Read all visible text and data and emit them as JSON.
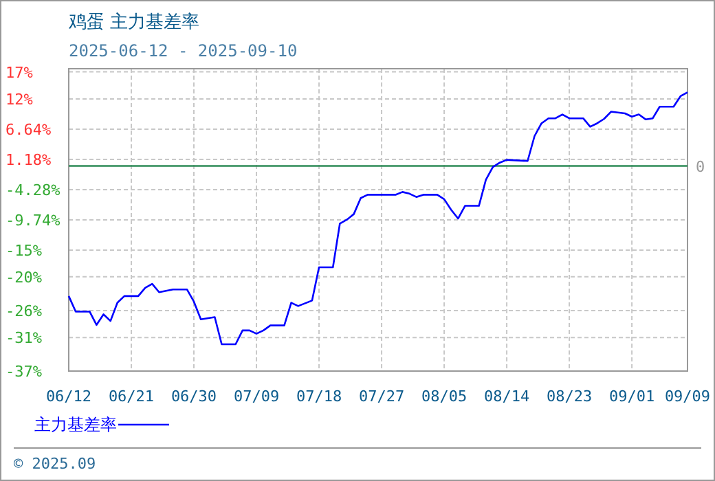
{
  "chart_data": {
    "type": "line",
    "title": "鸡蛋 主力基差率",
    "subtitle": "2025-06-12 - 2025-09-10",
    "series": [
      {
        "name": "主力基差率",
        "color": "#0000ff",
        "x": [
          "2025-06-12",
          "2025-06-13",
          "2025-06-15",
          "2025-06-16",
          "2025-06-17",
          "2025-06-18",
          "2025-06-19",
          "2025-06-20",
          "2025-06-22",
          "2025-06-23",
          "2025-06-24",
          "2025-06-25",
          "2025-06-27",
          "2025-06-29",
          "2025-06-30",
          "2025-07-01",
          "2025-07-03",
          "2025-07-04",
          "2025-07-06",
          "2025-07-07",
          "2025-07-08",
          "2025-07-09",
          "2025-07-10",
          "2025-07-11",
          "2025-07-13",
          "2025-07-14",
          "2025-07-15",
          "2025-07-17",
          "2025-07-18",
          "2025-07-20",
          "2025-07-21",
          "2025-07-22",
          "2025-07-23",
          "2025-07-24",
          "2025-07-25",
          "2025-07-29",
          "2025-07-30",
          "2025-07-31",
          "2025-08-01",
          "2025-08-02",
          "2025-08-04",
          "2025-08-05",
          "2025-08-06",
          "2025-08-07",
          "2025-08-08",
          "2025-08-10",
          "2025-08-11",
          "2025-08-12",
          "2025-08-13",
          "2025-08-14",
          "2025-08-17",
          "2025-08-18",
          "2025-08-19",
          "2025-08-20",
          "2025-08-21",
          "2025-08-22",
          "2025-08-23",
          "2025-08-25",
          "2025-08-26",
          "2025-08-27",
          "2025-08-28",
          "2025-08-29",
          "2025-08-31",
          "2025-09-01",
          "2025-09-02",
          "2025-09-03",
          "2025-09-04",
          "2025-09-05",
          "2025-09-07",
          "2025-09-08",
          "2025-09-09"
        ],
        "values": [
          -23.5,
          -26.3,
          -26.3,
          -28.7,
          -26.8,
          -28.0,
          -24.7,
          -23.5,
          -23.5,
          -22.0,
          -21.3,
          -22.8,
          -22.3,
          -22.3,
          -24.5,
          -27.7,
          -27.3,
          -32.2,
          -32.2,
          -29.7,
          -29.7,
          -30.3,
          -29.7,
          -28.8,
          -28.8,
          -24.7,
          -25.3,
          -24.3,
          -18.3,
          -18.3,
          -10.4,
          -9.7,
          -8.7,
          -5.8,
          -5.2,
          -5.2,
          -4.7,
          -5.0,
          -5.6,
          -5.2,
          -5.2,
          -6.0,
          -7.9,
          -9.5,
          -7.2,
          -7.2,
          -2.5,
          -0.2,
          0.6,
          1.1,
          0.9,
          5.4,
          7.7,
          8.6,
          8.6,
          9.3,
          8.6,
          8.6,
          7.1,
          7.7,
          8.5,
          9.8,
          9.5,
          8.9,
          9.3,
          8.4,
          8.6,
          10.7,
          10.7,
          12.6,
          13.3
        ]
      }
    ],
    "xlim": [
      "2025-06-12",
      "2025-09-09"
    ],
    "xticks": [
      {
        "value": "2025-06-12",
        "label": "06/12"
      },
      {
        "value": "2025-06-21",
        "label": "06/21"
      },
      {
        "value": "2025-06-30",
        "label": "06/30"
      },
      {
        "value": "2025-07-09",
        "label": "07/09"
      },
      {
        "value": "2025-07-18",
        "label": "07/18"
      },
      {
        "value": "2025-07-27",
        "label": "07/27"
      },
      {
        "value": "2025-08-05",
        "label": "08/05"
      },
      {
        "value": "2025-08-14",
        "label": "08/14"
      },
      {
        "value": "2025-08-23",
        "label": "08/23"
      },
      {
        "value": "2025-09-01",
        "label": "09/01"
      },
      {
        "value": "2025-09-09",
        "label": "09/09"
      }
    ],
    "ylim": [
      -37.04,
      17.56
    ],
    "yticks": [
      {
        "value": 17,
        "label": "17%"
      },
      {
        "value": 12.1,
        "label": "12%"
      },
      {
        "value": 6.64,
        "label": "6.64%"
      },
      {
        "value": 1.18,
        "label": "1.18%"
      },
      {
        "value": -4.28,
        "label": "-4.28%"
      },
      {
        "value": -9.74,
        "label": "-9.74%"
      },
      {
        "value": -15.2,
        "label": "-15%"
      },
      {
        "value": -20,
        "label": "-20%"
      },
      {
        "value": -26.12,
        "label": "-26%"
      },
      {
        "value": -31,
        "label": "-31%"
      },
      {
        "value": -37.04,
        "label": "-37%"
      }
    ],
    "ref_lines": [
      {
        "axis": "y",
        "value": 0,
        "label": "0",
        "color": "#2e8b57"
      }
    ],
    "grid": true,
    "legend": "bottom left",
    "line_style": "solid",
    "annotations": [
      "© 2025.09"
    ]
  }
}
